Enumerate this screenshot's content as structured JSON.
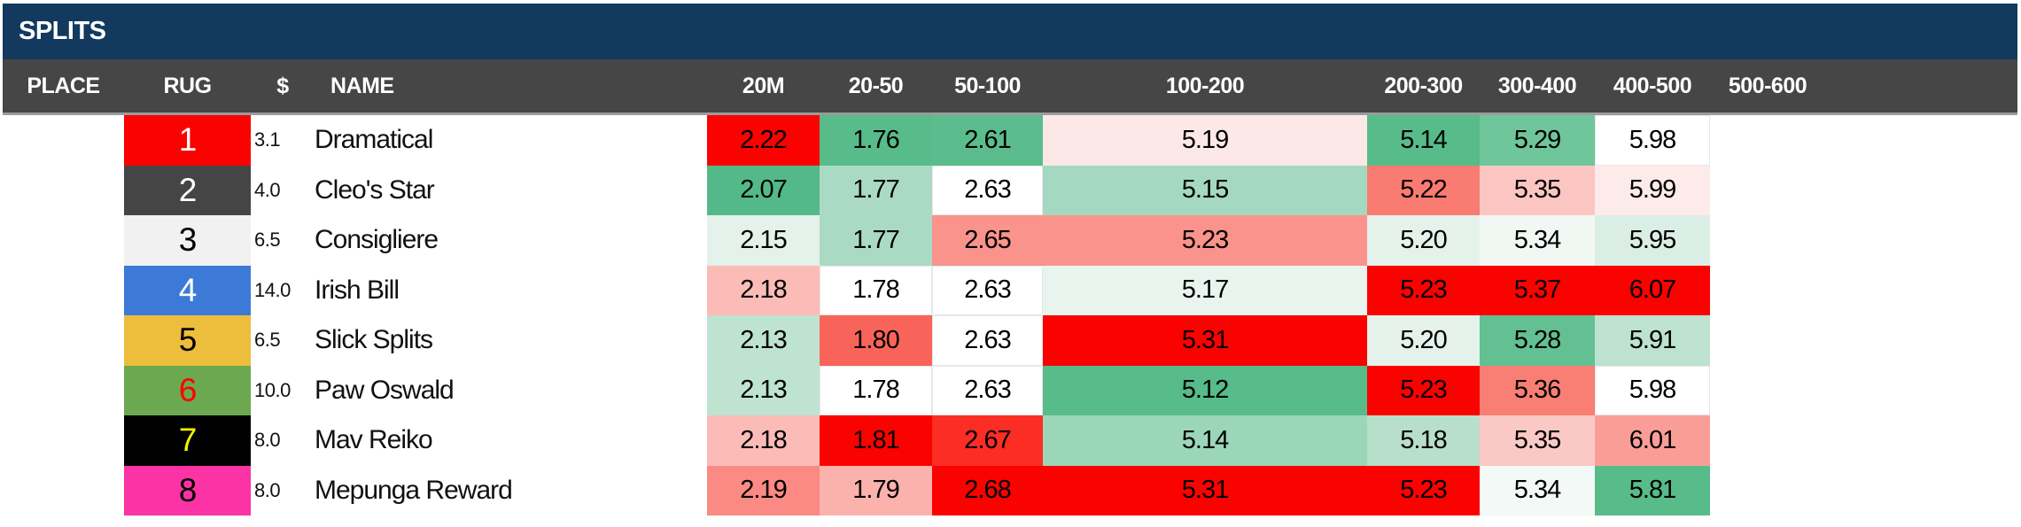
{
  "title_bar": {
    "label": "SPLITS",
    "bg": "#133A5E",
    "fg": "#FFFFFF"
  },
  "header": {
    "bg": "#464646",
    "fg": "#FFFFFF",
    "columns": [
      "PLACE",
      "RUG",
      "$",
      "NAME",
      "20M",
      "20-50",
      "50-100",
      "100-200",
      "200-300",
      "300-400",
      "400-500",
      "500-600"
    ]
  },
  "heat_colors": {
    "best_green": "#57BB8A",
    "worst_red": "#FA0200",
    "neutral": "#FFFFFF"
  },
  "rows": [
    {
      "place": "",
      "rug": "1",
      "rug_bg": "#FA0200",
      "rug_fg": "#FFFFFF",
      "odds": "3.1",
      "name": "Dramatical",
      "splits": [
        {
          "value": "2.22",
          "bg": "#FA0200"
        },
        {
          "value": "1.76",
          "bg": "#57BB8A"
        },
        {
          "value": "2.61",
          "bg": "#5BBD8D"
        },
        {
          "value": "5.19",
          "bg": "#FCE9E7"
        },
        {
          "value": "5.14",
          "bg": "#57BB8A"
        },
        {
          "value": "5.29",
          "bg": "#6FC69B"
        },
        {
          "value": "5.98",
          "bg": "#FFFFFF"
        },
        {
          "value": "",
          "bg": ""
        }
      ]
    },
    {
      "place": "",
      "rug": "2",
      "rug_bg": "#454545",
      "rug_fg": "#FFFFFF",
      "odds": "4.0",
      "name": "Cleo's Star",
      "splits": [
        {
          "value": "2.07",
          "bg": "#54B988"
        },
        {
          "value": "1.77",
          "bg": "#ABDAC4"
        },
        {
          "value": "2.63",
          "bg": "#FFFFFF"
        },
        {
          "value": "5.15",
          "bg": "#A5D8C0"
        },
        {
          "value": "5.22",
          "bg": "#F97B72"
        },
        {
          "value": "5.35",
          "bg": "#FBC6C2"
        },
        {
          "value": "5.99",
          "bg": "#FDEBE9"
        },
        {
          "value": "",
          "bg": ""
        }
      ]
    },
    {
      "place": "",
      "rug": "3",
      "rug_bg": "#F1F1F1",
      "rug_fg": "#000000",
      "odds": "6.5",
      "name": "Consigliere",
      "splits": [
        {
          "value": "2.15",
          "bg": "#E4F2EB"
        },
        {
          "value": "1.77",
          "bg": "#ABDAC4"
        },
        {
          "value": "2.65",
          "bg": "#F9938C"
        },
        {
          "value": "5.23",
          "bg": "#F9938C"
        },
        {
          "value": "5.20",
          "bg": "#E4F2EB"
        },
        {
          "value": "5.34",
          "bg": "#F1F8F4"
        },
        {
          "value": "5.95",
          "bg": "#DBEEE5"
        },
        {
          "value": "",
          "bg": ""
        }
      ]
    },
    {
      "place": "",
      "rug": "4",
      "rug_bg": "#3D7AD7",
      "rug_fg": "#FFFFFF",
      "odds": "14.0",
      "name": "Irish Bill",
      "splits": [
        {
          "value": "2.18",
          "bg": "#FBBCB8"
        },
        {
          "value": "1.78",
          "bg": "#FFFFFF"
        },
        {
          "value": "2.63",
          "bg": "#FFFFFF"
        },
        {
          "value": "5.17",
          "bg": "#E9F4EF"
        },
        {
          "value": "5.23",
          "bg": "#FA0200"
        },
        {
          "value": "5.37",
          "bg": "#FA0200"
        },
        {
          "value": "6.07",
          "bg": "#FA0200"
        },
        {
          "value": "",
          "bg": ""
        }
      ]
    },
    {
      "place": "",
      "rug": "5",
      "rug_bg": "#EDBE3B",
      "rug_fg": "#000000",
      "odds": "6.5",
      "name": "Slick Splits",
      "splits": [
        {
          "value": "2.13",
          "bg": "#BFE3D1"
        },
        {
          "value": "1.80",
          "bg": "#F9645A"
        },
        {
          "value": "2.63",
          "bg": "#FFFFFF"
        },
        {
          "value": "5.31",
          "bg": "#FA0200"
        },
        {
          "value": "5.20",
          "bg": "#E4F2EB"
        },
        {
          "value": "5.28",
          "bg": "#62C093"
        },
        {
          "value": "5.91",
          "bg": "#BDE2CF"
        },
        {
          "value": "",
          "bg": ""
        }
      ]
    },
    {
      "place": "",
      "rug": "6",
      "rug_bg": "#6CA84F",
      "rug_fg": "#FA0200",
      "odds": "10.0",
      "name": "Paw Oswald",
      "splits": [
        {
          "value": "2.13",
          "bg": "#BFE3D1"
        },
        {
          "value": "1.78",
          "bg": "#FFFFFF"
        },
        {
          "value": "2.63",
          "bg": "#FFFFFF"
        },
        {
          "value": "5.12",
          "bg": "#57BB8A"
        },
        {
          "value": "5.23",
          "bg": "#FA0200"
        },
        {
          "value": "5.36",
          "bg": "#F97E74"
        },
        {
          "value": "5.98",
          "bg": "#FFFFFF"
        },
        {
          "value": "",
          "bg": ""
        }
      ]
    },
    {
      "place": "",
      "rug": "7",
      "rug_bg": "#000000",
      "rug_fg": "#F2F200",
      "odds": "8.0",
      "name": "Mav Reiko",
      "splits": [
        {
          "value": "2.18",
          "bg": "#FBBCB8"
        },
        {
          "value": "1.81",
          "bg": "#FA0200"
        },
        {
          "value": "2.67",
          "bg": "#FB2D25"
        },
        {
          "value": "5.14",
          "bg": "#9CD6B9"
        },
        {
          "value": "5.18",
          "bg": "#B7DFCA"
        },
        {
          "value": "5.35",
          "bg": "#FBC9C5"
        },
        {
          "value": "6.01",
          "bg": "#FB9D97"
        },
        {
          "value": "",
          "bg": ""
        }
      ]
    },
    {
      "place": "",
      "rug": "8",
      "rug_bg": "#FB33A4",
      "rug_fg": "#000000",
      "odds": "8.0",
      "name": "Mepunga Reward",
      "splits": [
        {
          "value": "2.19",
          "bg": "#FA8A83"
        },
        {
          "value": "1.79",
          "bg": "#FBB2AD"
        },
        {
          "value": "2.68",
          "bg": "#FA0200"
        },
        {
          "value": "5.31",
          "bg": "#FA0200"
        },
        {
          "value": "5.23",
          "bg": "#FA0200"
        },
        {
          "value": "5.34",
          "bg": "#F3F9F6"
        },
        {
          "value": "5.81",
          "bg": "#57BB8A"
        },
        {
          "value": "",
          "bg": ""
        }
      ]
    }
  ]
}
